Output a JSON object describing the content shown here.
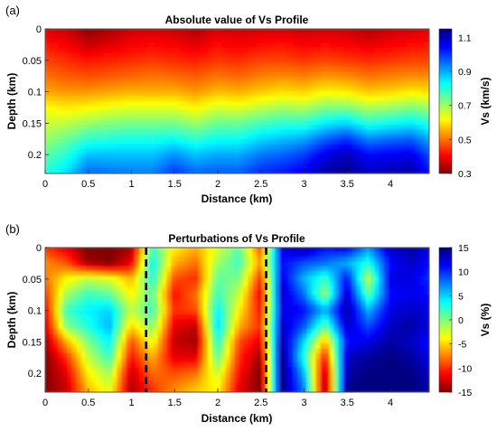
{
  "chart_data": [
    {
      "panel_label": "(a)",
      "type": "heatmap",
      "title": "Absolute value of Vs Profile",
      "xlabel": "Distance (km)",
      "ylabel": "Depth (km)",
      "colorbar_label": "Vs (km/s)",
      "xlim": [
        0,
        4.45
      ],
      "ylim": [
        0,
        0.23
      ],
      "y_reversed": true,
      "clim": [
        0.3,
        1.15
      ],
      "colormap": "jet-reversed (low = dark red, high = dark blue)",
      "xticks": [
        0,
        0.5,
        1,
        1.5,
        2,
        2.5,
        3,
        3.5,
        4
      ],
      "xtick_labels": [
        "0",
        "0.5",
        "1",
        "1.5",
        "2",
        "2.5",
        "3",
        "3.5",
        "4"
      ],
      "yticks": [
        0,
        0.05,
        0.1,
        0.15,
        0.2
      ],
      "ytick_labels": [
        "0",
        "0.05",
        "0.1",
        "0.15",
        "0.2"
      ],
      "cbar_ticks": [
        0.3,
        0.5,
        0.7,
        0.9,
        1.1
      ],
      "cbar_tick_labels": [
        "0.3",
        "0.5",
        "0.7",
        "0.9",
        "1.1"
      ],
      "distance_km": [
        0,
        0.25,
        0.5,
        0.75,
        1,
        1.25,
        1.5,
        1.75,
        2,
        2.25,
        2.5,
        2.75,
        3,
        3.25,
        3.5,
        3.75,
        4,
        4.25,
        4.45
      ],
      "depth_km": [
        0,
        0.025,
        0.05,
        0.075,
        0.1,
        0.125,
        0.15,
        0.175,
        0.2,
        0.23
      ],
      "values": [
        [
          0.38,
          0.36,
          0.31,
          0.33,
          0.36,
          0.37,
          0.36,
          0.34,
          0.37,
          0.36,
          0.37,
          0.37,
          0.36,
          0.37,
          0.36,
          0.34,
          0.36,
          0.37,
          0.38
        ],
        [
          0.42,
          0.4,
          0.36,
          0.38,
          0.4,
          0.41,
          0.4,
          0.38,
          0.41,
          0.4,
          0.41,
          0.42,
          0.4,
          0.41,
          0.4,
          0.39,
          0.4,
          0.41,
          0.42
        ],
        [
          0.46,
          0.44,
          0.42,
          0.43,
          0.44,
          0.45,
          0.44,
          0.43,
          0.45,
          0.44,
          0.46,
          0.46,
          0.45,
          0.46,
          0.45,
          0.44,
          0.45,
          0.46,
          0.46
        ],
        [
          0.5,
          0.48,
          0.47,
          0.48,
          0.49,
          0.5,
          0.49,
          0.48,
          0.5,
          0.49,
          0.51,
          0.52,
          0.51,
          0.53,
          0.52,
          0.5,
          0.51,
          0.52,
          0.52
        ],
        [
          0.54,
          0.53,
          0.53,
          0.54,
          0.55,
          0.55,
          0.55,
          0.53,
          0.56,
          0.55,
          0.57,
          0.59,
          0.58,
          0.61,
          0.6,
          0.57,
          0.58,
          0.6,
          0.59
        ],
        [
          0.62,
          0.6,
          0.61,
          0.63,
          0.64,
          0.64,
          0.64,
          0.61,
          0.65,
          0.64,
          0.67,
          0.69,
          0.68,
          0.72,
          0.72,
          0.68,
          0.7,
          0.72,
          0.7
        ],
        [
          0.66,
          0.67,
          0.7,
          0.72,
          0.73,
          0.73,
          0.73,
          0.7,
          0.74,
          0.74,
          0.77,
          0.79,
          0.79,
          0.84,
          0.86,
          0.8,
          0.82,
          0.84,
          0.8
        ],
        [
          0.7,
          0.74,
          0.79,
          0.8,
          0.81,
          0.81,
          0.82,
          0.79,
          0.82,
          0.82,
          0.86,
          0.88,
          0.9,
          0.96,
          1.0,
          0.93,
          0.95,
          0.96,
          0.9
        ],
        [
          0.75,
          0.8,
          0.88,
          0.88,
          0.88,
          0.88,
          0.92,
          0.88,
          0.9,
          0.9,
          0.94,
          0.96,
          0.99,
          1.06,
          1.1,
          1.04,
          1.05,
          1.06,
          0.98
        ],
        [
          0.8,
          0.86,
          0.96,
          0.95,
          0.94,
          0.94,
          1.0,
          0.96,
          0.97,
          0.97,
          1.01,
          1.03,
          1.06,
          1.12,
          1.14,
          1.1,
          1.11,
          1.12,
          1.04
        ]
      ]
    },
    {
      "panel_label": "(b)",
      "type": "heatmap",
      "title": "Perturbations of Vs Profile",
      "xlabel": "Distance (km)",
      "ylabel": "Depth (km)",
      "colorbar_label": "Vs (%)",
      "xlim": [
        0,
        4.45
      ],
      "ylim": [
        0,
        0.23
      ],
      "y_reversed": true,
      "clim": [
        -15,
        15
      ],
      "colormap": "jet-reversed (low = dark red, high = dark blue)",
      "xticks": [
        0,
        0.5,
        1,
        1.5,
        2,
        2.5,
        3,
        3.5,
        4
      ],
      "xtick_labels": [
        "0",
        "0.5",
        "1",
        "1.5",
        "2",
        "2.5",
        "3",
        "3.5",
        "4"
      ],
      "yticks": [
        0,
        0.05,
        0.1,
        0.15,
        0.2
      ],
      "ytick_labels": [
        "0",
        "0.05",
        "0.1",
        "0.15",
        "0.2"
      ],
      "cbar_ticks": [
        -15,
        -10,
        -5,
        0,
        5,
        10,
        15
      ],
      "cbar_tick_labels": [
        "-15",
        "-10",
        "-5",
        "0",
        "5",
        "10",
        "15"
      ],
      "boundary_lines_km": [
        1.17,
        2.56
      ],
      "distance_km": [
        0,
        0.25,
        0.5,
        0.75,
        1,
        1.25,
        1.5,
        1.75,
        2,
        2.25,
        2.5,
        2.75,
        3,
        3.25,
        3.5,
        3.75,
        4,
        4.25,
        4.45
      ],
      "depth_km": [
        0,
        0.025,
        0.05,
        0.075,
        0.1,
        0.125,
        0.15,
        0.175,
        0.2,
        0.23
      ],
      "values": [
        [
          -10,
          -12,
          -15,
          -15,
          -14,
          2,
          -4,
          -6,
          -3,
          1,
          -9,
          12,
          14,
          11,
          12,
          7,
          13,
          14,
          12
        ],
        [
          -7,
          -9,
          -14,
          -15,
          -12,
          4,
          -6,
          -8,
          -1,
          2,
          -7,
          11,
          9,
          8,
          6,
          3,
          11,
          13,
          11
        ],
        [
          -8,
          -4,
          -2,
          -3,
          -6,
          3,
          -9,
          -10,
          1,
          0,
          -10,
          12,
          6,
          2,
          11,
          -2,
          12,
          12,
          10
        ],
        [
          -10,
          -1,
          2,
          1,
          -4,
          1,
          -11,
          -8,
          2,
          -2,
          -12,
          13,
          8,
          -1,
          13,
          1,
          11,
          12,
          11
        ],
        [
          -12,
          2,
          4,
          5,
          -2,
          2,
          -10,
          -9,
          4,
          -4,
          -11,
          12,
          11,
          6,
          14,
          6,
          12,
          13,
          12
        ],
        [
          -13,
          0,
          3,
          6,
          -5,
          0,
          -12,
          -13,
          5,
          -6,
          -10,
          13,
          9,
          1,
          13,
          9,
          13,
          14,
          12
        ],
        [
          -14,
          -6,
          0,
          4,
          -9,
          -3,
          -13,
          -14,
          3,
          -9,
          -12,
          14,
          5,
          -6,
          11,
          12,
          14,
          13,
          11
        ],
        [
          -15,
          -10,
          -2,
          2,
          -11,
          -6,
          -12,
          -12,
          1,
          -10,
          -14,
          15,
          3,
          -11,
          13,
          14,
          15,
          14,
          12
        ],
        [
          -15,
          -12,
          -4,
          -1,
          -13,
          -8,
          -9,
          -8,
          -2,
          -11,
          -15,
          15,
          6,
          -14,
          14,
          15,
          15,
          15,
          13
        ],
        [
          -15,
          -13,
          -6,
          -3,
          -14,
          -10,
          -7,
          -5,
          -4,
          -12,
          -15,
          15,
          8,
          -15,
          15,
          15,
          15,
          15,
          14
        ]
      ]
    }
  ]
}
